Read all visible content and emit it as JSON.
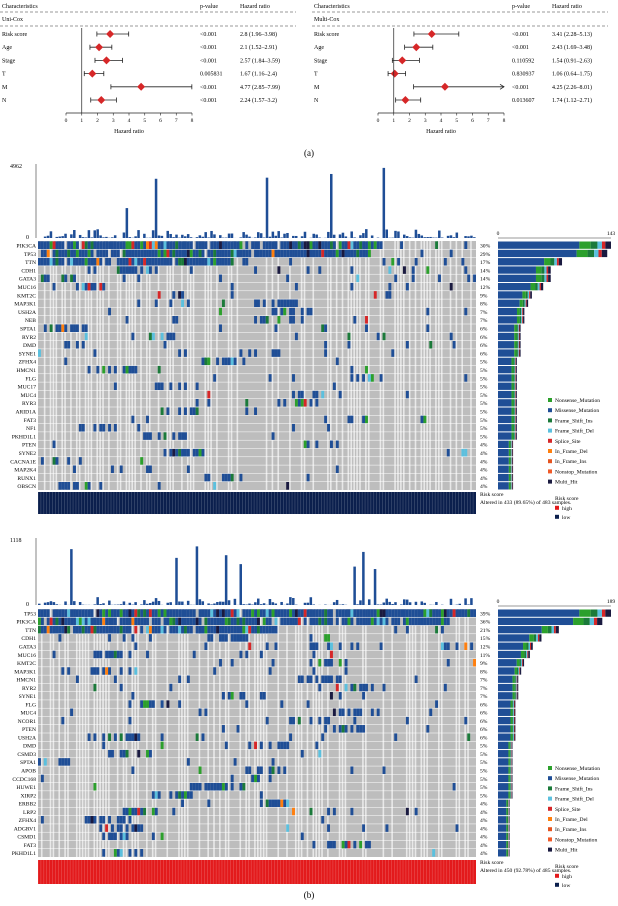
{
  "panel_labels": {
    "a": "(a)",
    "b": "(b)"
  },
  "chart_data": [
    {
      "type": "forest",
      "panel": "a-left",
      "title": "Uni-Cox",
      "header": {
        "characteristics": "Characteristics",
        "pvalue": "p-value",
        "hazard": "Hazard ratio"
      },
      "xlabel": "Hazard ratio",
      "xlim": [
        0,
        8
      ],
      "xticks": [
        0,
        1,
        2,
        3,
        4,
        5,
        6,
        7,
        8
      ],
      "reference_line": 1,
      "color": "#d62728",
      "rows": [
        {
          "label": "Risk score",
          "p": "<0.001",
          "hr_text": "2.8 (1.96–3.98)",
          "hr": 2.8,
          "lo": 1.96,
          "hi": 3.98
        },
        {
          "label": "Age",
          "p": "<0.001",
          "hr_text": "2.1 (1.52–2.91)",
          "hr": 2.1,
          "lo": 1.52,
          "hi": 2.91
        },
        {
          "label": "Stage",
          "p": "<0.001",
          "hr_text": "2.57 (1.84–3.59)",
          "hr": 2.57,
          "lo": 1.84,
          "hi": 3.59
        },
        {
          "label": "T",
          "p": "0.005831",
          "hr_text": "1.67 (1.16–2.4)",
          "hr": 1.67,
          "lo": 1.16,
          "hi": 2.4
        },
        {
          "label": "M",
          "p": "<0.001",
          "hr_text": "4.77 (2.85–7.99)",
          "hr": 4.77,
          "lo": 2.85,
          "hi": 7.99
        },
        {
          "label": "N",
          "p": "<0.001",
          "hr_text": "2.24 (1.57–3.2)",
          "hr": 2.24,
          "lo": 1.57,
          "hi": 3.2
        }
      ]
    },
    {
      "type": "forest",
      "panel": "a-right",
      "title": "Multi-Cox",
      "header": {
        "characteristics": "Characteristics",
        "pvalue": "p-value",
        "hazard": "Hazard ratio"
      },
      "xlabel": "Hazard ratio",
      "xlim": [
        0,
        8
      ],
      "xticks": [
        0,
        1,
        2,
        3,
        4,
        5,
        6,
        7,
        8
      ],
      "reference_line": 1,
      "color": "#d62728",
      "rows": [
        {
          "label": "Risk score",
          "p": "<0.001",
          "hr_text": "3.41 (2.28–5.13)",
          "hr": 3.41,
          "lo": 2.28,
          "hi": 5.13
        },
        {
          "label": "Age",
          "p": "<0.001",
          "hr_text": "2.43 (1.69–3.48)",
          "hr": 2.43,
          "lo": 1.69,
          "hi": 3.48
        },
        {
          "label": "Stage",
          "p": "0.110592",
          "hr_text": "1.54 (0.91–2.63)",
          "hr": 1.54,
          "lo": 0.91,
          "hi": 2.63
        },
        {
          "label": "T",
          "p": "0.830937",
          "hr_text": "1.06 (0.64–1.75)",
          "hr": 1.06,
          "lo": 0.64,
          "hi": 1.75
        },
        {
          "label": "M",
          "p": "<0.001",
          "hr_text": "4.25 (2.26–8.01)",
          "hr": 4.25,
          "lo": 2.26,
          "hi": 8.01
        },
        {
          "label": "N",
          "p": "0.013607",
          "hr_text": "1.74 (1.12–2.71)",
          "hr": 1.74,
          "lo": 1.12,
          "hi": 2.71
        }
      ]
    },
    {
      "type": "heatmap",
      "subtype": "oncoplot",
      "panel": "b-top",
      "tmb_max": 4962,
      "bar_axis_ticks": [
        0,
        143
      ],
      "genes": [
        "PIK3CA",
        "TP53",
        "TTN",
        "CDH1",
        "GATA3",
        "MUC16",
        "KMT2C",
        "MAP3K1",
        "USH2A",
        "NEB",
        "SPTA1",
        "RYR2",
        "DMD",
        "SYNE1",
        "ZFHX4",
        "HMCN1",
        "FLG",
        "MUC17",
        "MUC4",
        "RYR3",
        "ARID1A",
        "FAT3",
        "NF1",
        "PKHD1L1",
        "PTEN",
        "SYNE2",
        "CACNA1E",
        "MAP2K4",
        "RUNX1",
        "OBSCN"
      ],
      "percentages": [
        "30%",
        "29%",
        "17%",
        "14%",
        "14%",
        "12%",
        "9%",
        "8%",
        "7%",
        "7%",
        "6%",
        "6%",
        "6%",
        "6%",
        "5%",
        "5%",
        "5%",
        "5%",
        "5%",
        "5%",
        "5%",
        "5%",
        "5%",
        "5%",
        "4%",
        "4%",
        "4%",
        "4%",
        "4%",
        "4%"
      ],
      "risk_label": "Risk score",
      "risk_group": "low",
      "altered_text": "Altered in 433 (89.65%) of 483 samples."
    },
    {
      "type": "heatmap",
      "subtype": "oncoplot",
      "panel": "b-bottom",
      "tmb_max": 1118,
      "bar_axis_ticks": [
        0,
        189
      ],
      "genes": [
        "TP53",
        "PIK3CA",
        "TTN",
        "CDH1",
        "GATA3",
        "MUC16",
        "KMT2C",
        "MAP3K1",
        "HMCN1",
        "RYR2",
        "SYNE1",
        "FLG",
        "MUC4",
        "NCOR1",
        "PTEN",
        "USH2A",
        "DMD",
        "CSMD3",
        "SPTA1",
        "APOB",
        "CCDC168",
        "HUWE1",
        "XIRP2",
        "ERBB2",
        "LRP2",
        "ZFHX4",
        "ADGRV1",
        "CSMD1",
        "FAT3",
        "PKHD1L1"
      ],
      "percentages": [
        "39%",
        "36%",
        "21%",
        "15%",
        "12%",
        "11%",
        "9%",
        "8%",
        "7%",
        "7%",
        "7%",
        "6%",
        "6%",
        "6%",
        "6%",
        "6%",
        "5%",
        "5%",
        "5%",
        "5%",
        "5%",
        "5%",
        "5%",
        "4%",
        "4%",
        "4%",
        "4%",
        "4%",
        "4%",
        "4%"
      ],
      "risk_label": "Risk score",
      "risk_group": "high",
      "altered_text": "Altered in 450 (92.78%) of 485 samples."
    }
  ],
  "legend": {
    "variants": [
      {
        "name": "Nonsense_Mutation",
        "color": "#2ca02c"
      },
      {
        "name": "Missense_Mutation",
        "color": "#1f4e96"
      },
      {
        "name": "Frame_Shift_Ins",
        "color": "#1b7a3a"
      },
      {
        "name": "Frame_Shift_Del",
        "color": "#5bc0de"
      },
      {
        "name": "Splice_Site",
        "color": "#d62728"
      },
      {
        "name": "In_Frame_Del",
        "color": "#ff7f0e"
      },
      {
        "name": "In_Frame_Ins",
        "color": "#e5541f"
      },
      {
        "name": "Nonstop_Mutation",
        "color": "#f05a28"
      },
      {
        "name": "Multi_Hit",
        "color": "#1a1a40"
      }
    ],
    "risk_title": "Risk score",
    "risk_levels": [
      {
        "name": "high",
        "color": "#e31a1c"
      },
      {
        "name": "low",
        "color": "#0b1f4d"
      }
    ]
  }
}
